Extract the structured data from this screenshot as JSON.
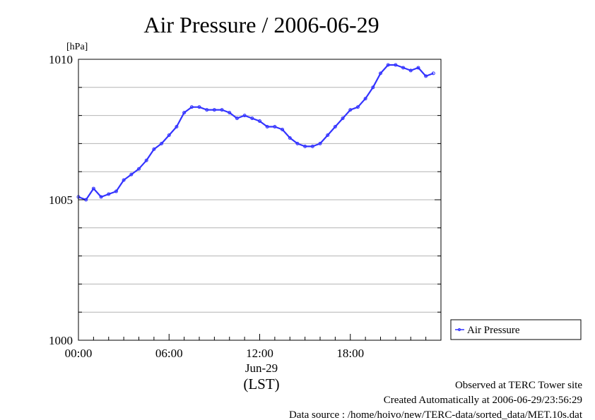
{
  "chart_data": {
    "type": "line",
    "title": "Air Pressure / 2006-06-29",
    "ylabel": "[hPa]",
    "ylim": [
      1000,
      1010
    ],
    "y_ticks": [
      1000,
      1005,
      1010
    ],
    "y_tick_labels": [
      "1000",
      "1005",
      "1010"
    ],
    "grid": true,
    "xlim": [
      "2006-06-29 00:00",
      "2006-06-30 00:00"
    ],
    "x_ticks": [
      "00:00",
      "06:00",
      "12:00",
      "18:00"
    ],
    "x_date_label": "Jun-29",
    "x_timezone_label": "(LST)",
    "legend_position": "right",
    "series": [
      {
        "name": "Air Pressure",
        "color": "#3333ff",
        "x": [
          "00:00",
          "00:30",
          "01:00",
          "01:30",
          "02:00",
          "02:30",
          "03:00",
          "03:30",
          "04:00",
          "04:30",
          "05:00",
          "05:30",
          "06:00",
          "06:30",
          "07:00",
          "07:30",
          "08:00",
          "08:30",
          "09:00",
          "09:30",
          "10:00",
          "10:30",
          "11:00",
          "11:30",
          "12:00",
          "12:30",
          "13:00",
          "13:30",
          "14:00",
          "14:30",
          "15:00",
          "15:30",
          "16:00",
          "16:30",
          "17:00",
          "17:30",
          "18:00",
          "18:30",
          "19:00",
          "19:30",
          "20:00",
          "20:30",
          "21:00",
          "21:30",
          "22:00",
          "22:30",
          "23:00",
          "23:30"
        ],
        "y": [
          1005.1,
          1005.0,
          1005.4,
          1005.1,
          1005.2,
          1005.3,
          1005.7,
          1005.9,
          1006.1,
          1006.4,
          1006.8,
          1007.0,
          1007.3,
          1007.6,
          1008.1,
          1008.3,
          1008.3,
          1008.2,
          1008.2,
          1008.2,
          1008.1,
          1007.9,
          1008.0,
          1007.9,
          1007.8,
          1007.6,
          1007.6,
          1007.5,
          1007.2,
          1007.0,
          1006.9,
          1006.9,
          1007.0,
          1007.3,
          1007.6,
          1007.9,
          1008.2,
          1008.3,
          1008.6,
          1009.0,
          1009.5,
          1009.8,
          1009.8,
          1009.7,
          1009.6,
          1009.7,
          1009.4,
          1009.5
        ]
      }
    ]
  },
  "footer": {
    "line1": "Observed at TERC Tower site",
    "line2": "Created Automatically at 2006-06-29/23:56:29",
    "line3": "Data source : /home/hoivo/new/TERC-data/sorted_data/MET.10s.dat"
  }
}
